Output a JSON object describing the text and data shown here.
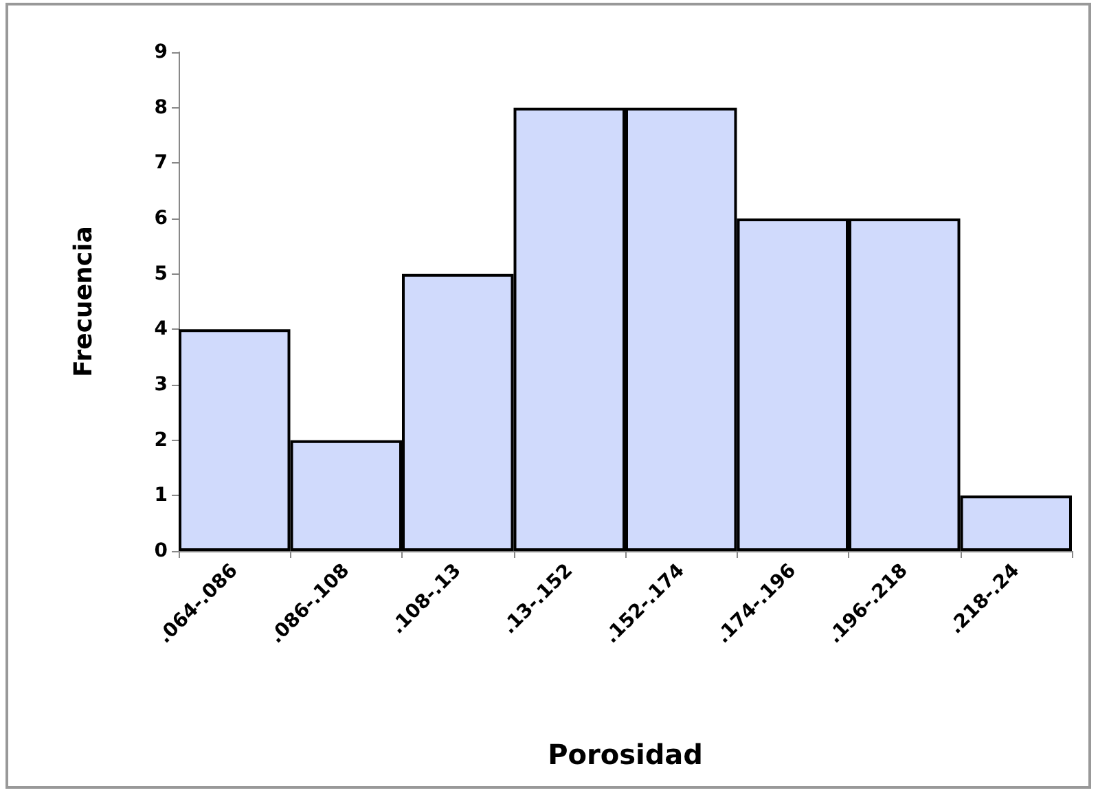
{
  "chart_data": {
    "type": "bar",
    "xlabel": "Porosidad",
    "ylabel": "Frecuencia",
    "categories": [
      ".064-.086",
      ".086-.108",
      ".108-.13",
      ".13-.152",
      ".152-.174",
      ".174-.196",
      ".196-.218",
      ".218-.24"
    ],
    "values": [
      4,
      2,
      5,
      8,
      8,
      6,
      6,
      1
    ],
    "color": "#d0dafc",
    "ylim": [
      0,
      9
    ],
    "yticks": [
      0,
      1,
      2,
      3,
      4,
      5,
      6,
      7,
      8,
      9
    ],
    "grid": false
  }
}
